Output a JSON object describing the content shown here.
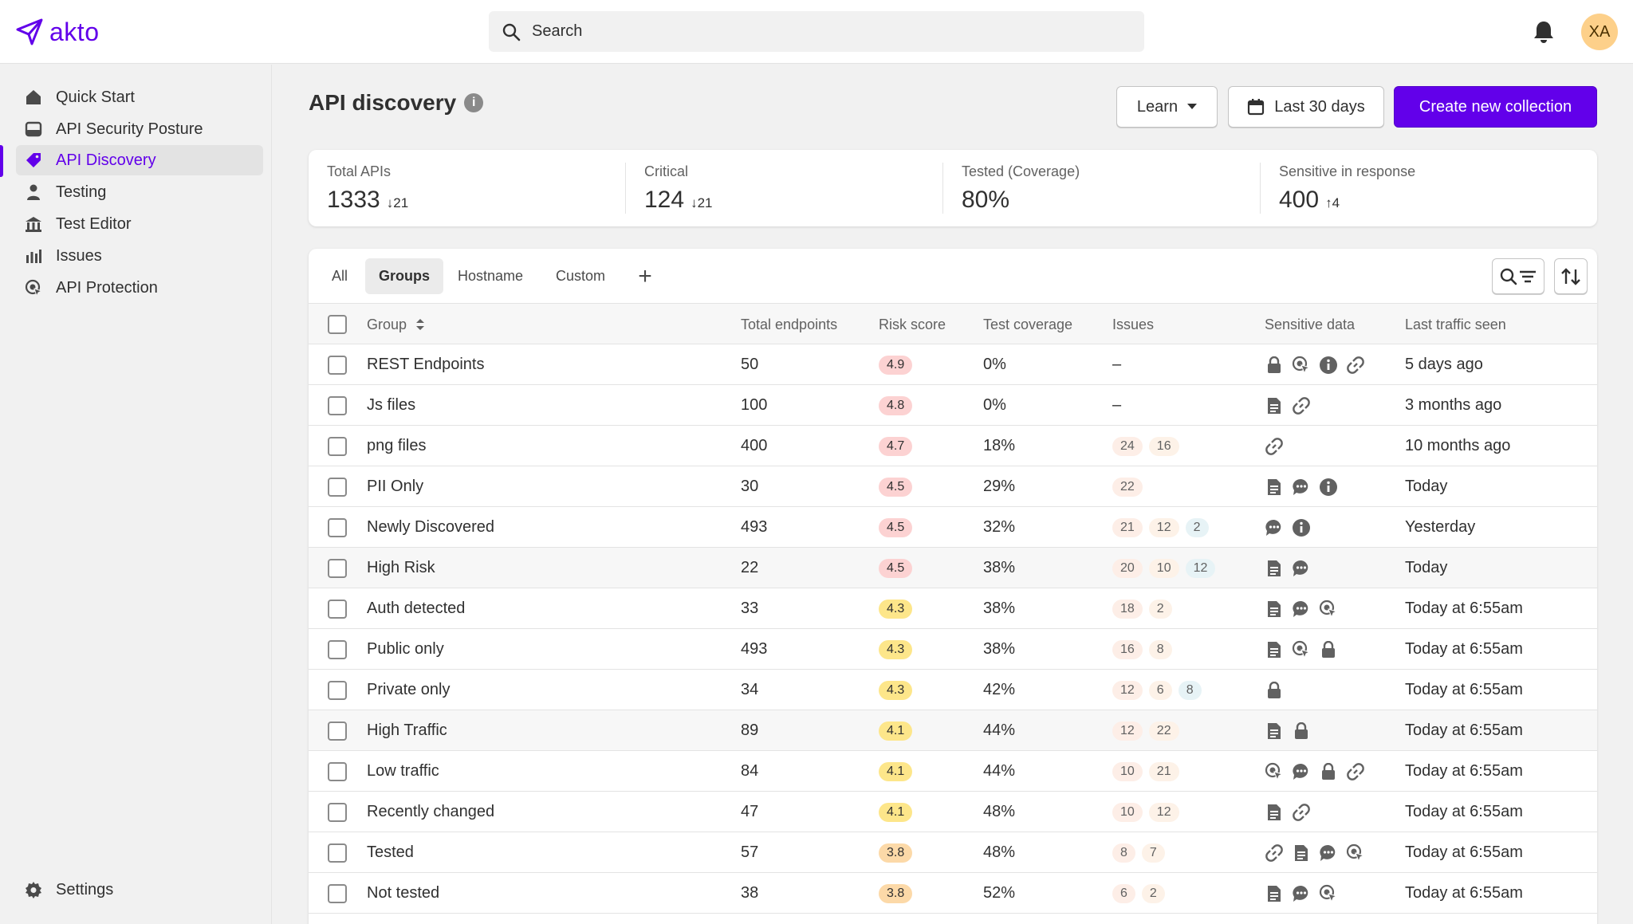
{
  "app": {
    "logo_text": "akto"
  },
  "topbar": {
    "search_placeholder": "Search",
    "avatar_initials": "XA"
  },
  "sidebar": {
    "items": [
      {
        "label": "Quick Start",
        "icon": "home-icon"
      },
      {
        "label": "API Security Posture",
        "icon": "inbox-icon"
      },
      {
        "label": "API Discovery",
        "icon": "tag-icon",
        "active": true
      },
      {
        "label": "Testing",
        "icon": "person-icon"
      },
      {
        "label": "Test Editor",
        "icon": "bank-icon"
      },
      {
        "label": "Issues",
        "icon": "bar-chart-icon"
      },
      {
        "label": "API Protection",
        "icon": "target-icon"
      }
    ],
    "settings_label": "Settings"
  },
  "header": {
    "title": "API discovery",
    "learn_label": "Learn",
    "date_label": "Last 30 days",
    "create_label": "Create new collection"
  },
  "summary": [
    {
      "label": "Total APIs",
      "value": "1333",
      "delta": "21",
      "direction": "down"
    },
    {
      "label": "Critical",
      "value": "124",
      "delta": "21",
      "direction": "down"
    },
    {
      "label": "Tested (Coverage)",
      "value": "80%",
      "delta": "",
      "direction": ""
    },
    {
      "label": "Sensitive in response",
      "value": "400",
      "delta": "4",
      "direction": "up"
    }
  ],
  "tabs": [
    "All",
    "Groups",
    "Hostname",
    "Custom"
  ],
  "active_tab": "Groups",
  "columns": [
    "Group",
    "Total endpoints",
    "Risk score",
    "Test coverage",
    "Issues",
    "Sensitive data",
    "Last traffic seen"
  ],
  "colors": {
    "accent": "#6200ea",
    "risk_high": "#fcd2d2",
    "risk_med": "#fde68a",
    "risk_low": "#fcd9a8"
  },
  "rows": [
    {
      "group": "REST Endpoints",
      "endpoints": "50",
      "risk": "4.9",
      "risk_level": "high",
      "coverage": "0%",
      "issues": [],
      "issues_empty": "–",
      "sensitive": [
        "lock-icon",
        "target-icon",
        "info-icon",
        "link-icon"
      ],
      "last_seen": "5 days ago"
    },
    {
      "group": "Js files",
      "endpoints": "100",
      "risk": "4.8",
      "risk_level": "high",
      "coverage": "0%",
      "issues": [],
      "issues_empty": "–",
      "sensitive": [
        "document-icon",
        "link-icon"
      ],
      "last_seen": "3 months ago"
    },
    {
      "group": "png files",
      "endpoints": "400",
      "risk": "4.7",
      "risk_level": "high",
      "coverage": "18%",
      "issues": [
        "24",
        "16"
      ],
      "sensitive": [
        "link-icon"
      ],
      "last_seen": "10 months ago"
    },
    {
      "group": "PII Only",
      "endpoints": "30",
      "risk": "4.5",
      "risk_level": "high",
      "coverage": "29%",
      "issues": [
        "22"
      ],
      "sensitive": [
        "document-icon",
        "chat-icon",
        "info-icon"
      ],
      "last_seen": "Today"
    },
    {
      "group": "Newly Discovered",
      "endpoints": "493",
      "risk": "4.5",
      "risk_level": "high",
      "coverage": "32%",
      "issues": [
        "21",
        "12",
        "2"
      ],
      "sensitive": [
        "chat-icon",
        "info-icon"
      ],
      "last_seen": "Yesterday"
    },
    {
      "group": "High Risk",
      "endpoints": "22",
      "risk": "4.5",
      "risk_level": "high",
      "coverage": "38%",
      "issues": [
        "20",
        "10",
        "12"
      ],
      "sensitive": [
        "document-icon",
        "chat-icon"
      ],
      "last_seen": "Today"
    },
    {
      "group": "Auth detected",
      "endpoints": "33",
      "risk": "4.3",
      "risk_level": "med",
      "coverage": "38%",
      "issues": [
        "18",
        "2"
      ],
      "sensitive": [
        "document-icon",
        "chat-icon",
        "target-icon"
      ],
      "last_seen": "Today at 6:55am"
    },
    {
      "group": "Public only",
      "endpoints": "493",
      "risk": "4.3",
      "risk_level": "med",
      "coverage": "38%",
      "issues": [
        "16",
        "8"
      ],
      "sensitive": [
        "document-icon",
        "target-icon",
        "lock-icon"
      ],
      "last_seen": "Today at 6:55am"
    },
    {
      "group": "Private only",
      "endpoints": "34",
      "risk": "4.3",
      "risk_level": "med",
      "coverage": "42%",
      "issues": [
        "12",
        "6",
        "8"
      ],
      "sensitive": [
        "lock-icon"
      ],
      "last_seen": "Today at 6:55am"
    },
    {
      "group": "High Traffic",
      "endpoints": "89",
      "risk": "4.1",
      "risk_level": "med",
      "coverage": "44%",
      "issues": [
        "12",
        "22"
      ],
      "sensitive": [
        "document-icon",
        "lock-icon"
      ],
      "last_seen": "Today at 6:55am"
    },
    {
      "group": "Low traffic",
      "endpoints": "84",
      "risk": "4.1",
      "risk_level": "med",
      "coverage": "44%",
      "issues": [
        "10",
        "21"
      ],
      "sensitive": [
        "target-icon",
        "chat-icon",
        "lock-icon",
        "link-icon"
      ],
      "last_seen": "Today at 6:55am"
    },
    {
      "group": "Recently changed",
      "endpoints": "47",
      "risk": "4.1",
      "risk_level": "med",
      "coverage": "48%",
      "issues": [
        "10",
        "12"
      ],
      "sensitive": [
        "document-icon",
        "link-icon"
      ],
      "last_seen": "Today at 6:55am"
    },
    {
      "group": "Tested",
      "endpoints": "57",
      "risk": "3.8",
      "risk_level": "low",
      "coverage": "48%",
      "issues": [
        "8",
        "7"
      ],
      "sensitive": [
        "link-icon",
        "document-icon",
        "chat-icon",
        "target-icon"
      ],
      "last_seen": "Today at 6:55am"
    },
    {
      "group": "Not tested",
      "endpoints": "38",
      "risk": "3.8",
      "risk_level": "low",
      "coverage": "52%",
      "issues": [
        "6",
        "2"
      ],
      "sensitive": [
        "document-icon",
        "chat-icon",
        "target-icon"
      ],
      "last_seen": "Today at 6:55am"
    }
  ]
}
